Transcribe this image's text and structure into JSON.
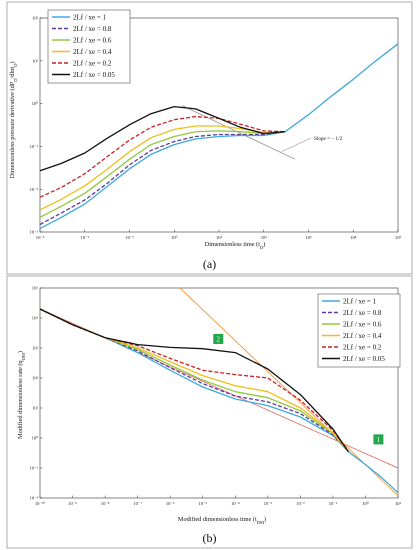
{
  "chart_data": [
    {
      "type": "line",
      "caption": "(a)",
      "xlabel": "Dimensionless time (t",
      "xlabel_sub": "D",
      "xlabel_end": ")",
      "ylabel": "Dimensionless pressure derivative (dP",
      "ylabel_sub1": "D",
      "ylabel_mid": "/dlnt",
      "ylabel_sub2": "D",
      "ylabel_end": ")",
      "xscale": "log",
      "yscale": "log",
      "xlim": [
        0.001,
        100000
      ],
      "ylim": [
        0.001,
        100
      ],
      "xticks": [
        "10⁻³",
        "10⁻²",
        "10⁻¹",
        "10⁰",
        "10¹",
        "10²",
        "10³",
        "10⁴",
        "10⁵"
      ],
      "yticks": [
        "10⁻³",
        "10⁻²",
        "10⁻¹",
        "10⁰",
        "10¹",
        "10²"
      ],
      "legend": "top-left",
      "annotation": "Slope = − 1/2",
      "series": [
        {
          "name": "2Lf / xe = 1",
          "color": "#3fa9e0",
          "dash": "",
          "x": [
            0.001,
            0.003,
            0.01,
            0.03,
            0.1,
            0.3,
            1,
            3,
            10,
            30,
            100,
            300,
            1000,
            3000,
            10000,
            30000,
            100000
          ],
          "y": [
            0.0012,
            0.0022,
            0.0045,
            0.011,
            0.03,
            0.065,
            0.11,
            0.15,
            0.17,
            0.18,
            0.18,
            0.22,
            0.55,
            1.4,
            3.7,
            9.5,
            25
          ]
        },
        {
          "name": "2Lf / xe = 0.8",
          "color": "#5b3d9e",
          "dash": "4,2",
          "x": [
            0.001,
            0.003,
            0.01,
            0.03,
            0.1,
            0.3,
            1,
            3,
            10,
            30,
            100,
            300
          ],
          "y": [
            0.0015,
            0.0028,
            0.0056,
            0.013,
            0.037,
            0.08,
            0.13,
            0.17,
            0.19,
            0.19,
            0.19,
            0.22
          ]
        },
        {
          "name": "2Lf / xe = 0.6",
          "color": "#92c83e",
          "dash": "",
          "x": [
            0.001,
            0.003,
            0.01,
            0.03,
            0.1,
            0.3,
            1,
            3,
            10,
            30,
            100,
            300
          ],
          "y": [
            0.0022,
            0.004,
            0.008,
            0.019,
            0.05,
            0.11,
            0.17,
            0.22,
            0.23,
            0.22,
            0.2,
            0.22
          ]
        },
        {
          "name": "2Lf / xe = 0.4",
          "color": "#f0be1a",
          "dash": "",
          "x": [
            0.001,
            0.003,
            0.01,
            0.03,
            0.1,
            0.3,
            1,
            3,
            10,
            30,
            100,
            300
          ],
          "y": [
            0.0033,
            0.0058,
            0.012,
            0.028,
            0.075,
            0.16,
            0.25,
            0.3,
            0.3,
            0.26,
            0.21,
            0.22
          ]
        },
        {
          "name": "2Lf / xe = 0.2",
          "color": "#c9202a",
          "dash": "4,2",
          "x": [
            0.001,
            0.003,
            0.01,
            0.03,
            0.1,
            0.3,
            1,
            3,
            10,
            30,
            100,
            300
          ],
          "y": [
            0.0065,
            0.011,
            0.023,
            0.055,
            0.14,
            0.28,
            0.42,
            0.5,
            0.45,
            0.33,
            0.23,
            0.22
          ]
        },
        {
          "name": "2Lf / xe = 0.05",
          "color": "#111111",
          "dash": "",
          "x": [
            0.001,
            0.003,
            0.01,
            0.03,
            0.1,
            0.3,
            1,
            3,
            10,
            30,
            100,
            300
          ],
          "y": [
            0.027,
            0.04,
            0.07,
            0.15,
            0.32,
            0.58,
            0.85,
            0.75,
            0.45,
            0.28,
            0.2,
            0.22
          ]
        }
      ]
    },
    {
      "type": "line",
      "caption": "(b)",
      "xlabel": "Modified dimensionless time (t",
      "xlabel_sub": "DM",
      "xlabel_end": ")",
      "ylabel": "Modified dimensionless rate (q",
      "ylabel_sub": "DM",
      "ylabel_end": ")",
      "xscale": "log",
      "yscale": "log",
      "xlim": [
        1e-10,
        10
      ],
      "ylim": [
        0.01,
        100000
      ],
      "xticks": [
        "10⁻¹⁰",
        "10⁻⁹",
        "10⁻⁸",
        "10⁻⁷",
        "10⁻⁶",
        "10⁻⁵",
        "10⁻⁴",
        "10⁻³",
        "10⁻²",
        "10⁻¹",
        "10⁰",
        "10¹"
      ],
      "yticks": [
        "10⁻²",
        "10⁻¹",
        "10⁰",
        "10¹",
        "10²",
        "10³",
        "10⁴",
        "10⁵"
      ],
      "legend": "top-right",
      "markers": [
        "2",
        "1"
      ],
      "series": [
        {
          "name": "2Lf / xe = 1",
          "color": "#3fa9e0",
          "dash": "",
          "x": [
            1e-10,
            1e-09,
            1e-08,
            1e-07,
            1e-06,
            1e-05,
            0.0001,
            0.001,
            0.01,
            0.1,
            0.3,
            1,
            3,
            10
          ],
          "y": [
            20000,
            6000,
            2200,
            700,
            180,
            50,
            20,
            12,
            5,
            1.2,
            0.35,
            0.13,
            0.05,
            0.015
          ]
        },
        {
          "name": "2Lf / xe = 0.8",
          "color": "#5b3d9e",
          "dash": "4,2",
          "x": [
            1e-10,
            1e-09,
            1e-08,
            1e-07,
            1e-06,
            1e-05,
            0.0001,
            0.001,
            0.01,
            0.1,
            0.3
          ],
          "y": [
            20000,
            6000,
            2200,
            800,
            220,
            65,
            25,
            16,
            6.5,
            1.3,
            0.35
          ]
        },
        {
          "name": "2Lf / xe = 0.6",
          "color": "#92c83e",
          "dash": "",
          "x": [
            1e-10,
            1e-09,
            1e-08,
            1e-07,
            1e-06,
            1e-05,
            0.0001,
            0.001,
            0.01,
            0.1,
            0.3
          ],
          "y": [
            20000,
            6000,
            2200,
            900,
            270,
            85,
            35,
            22,
            8,
            1.4,
            0.35
          ]
        },
        {
          "name": "2Lf / xe = 0.4",
          "color": "#f0be1a",
          "dash": "",
          "x": [
            1e-10,
            1e-09,
            1e-08,
            1e-07,
            1e-06,
            1e-05,
            0.0001,
            0.001,
            0.01,
            0.1,
            0.3
          ],
          "y": [
            20000,
            6000,
            2200,
            1000,
            350,
            120,
            55,
            35,
            10,
            1.5,
            0.35
          ]
        },
        {
          "name": "2Lf / xe = 0.2",
          "color": "#c9202a",
          "dash": "4,2",
          "x": [
            1e-10,
            1e-09,
            1e-08,
            1e-07,
            1e-06,
            1e-05,
            0.0001,
            0.001,
            0.01,
            0.1,
            0.3
          ],
          "y": [
            20000,
            6000,
            2200,
            1200,
            450,
            180,
            130,
            100,
            18,
            1.8,
            0.35
          ]
        },
        {
          "name": "2Lf / xe = 0.05",
          "color": "#111111",
          "dash": "",
          "x": [
            1e-10,
            1e-09,
            1e-08,
            1e-07,
            1e-06,
            1e-05,
            0.0001,
            0.001,
            0.01,
            0.1,
            0.3
          ],
          "y": [
            20000,
            6000,
            2200,
            1300,
            1050,
            950,
            700,
            200,
            28,
            2,
            0.35
          ]
        }
      ]
    }
  ]
}
